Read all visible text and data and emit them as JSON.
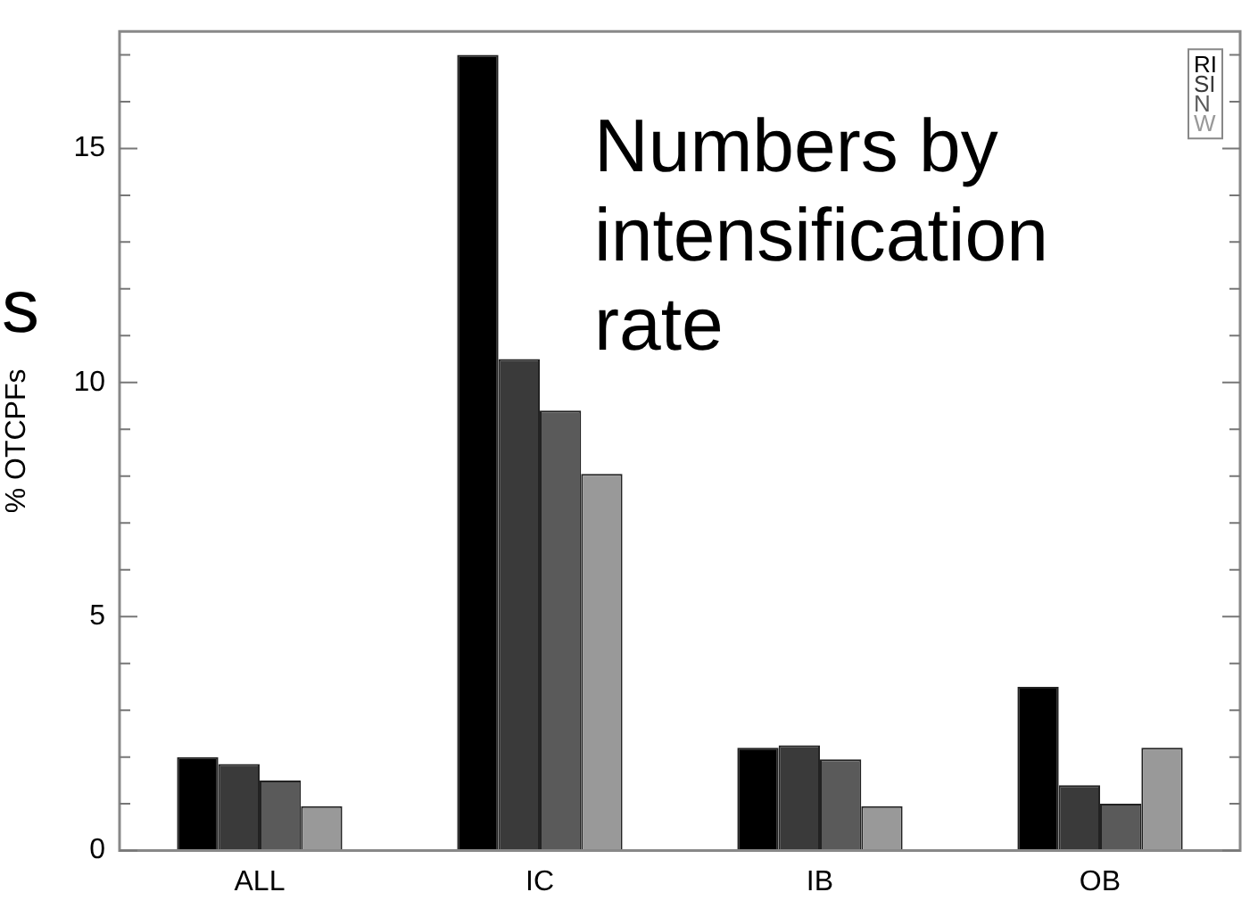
{
  "chart_data": {
    "type": "bar",
    "ylabel": "% OTCPFs",
    "categories": [
      "ALL",
      "IC",
      "IB",
      "OB"
    ],
    "series": [
      {
        "name": "RI",
        "color": "#000000",
        "values": [
          2.0,
          17.0,
          2.2,
          3.5
        ]
      },
      {
        "name": "SI",
        "color": "#3a3a3a",
        "values": [
          1.85,
          10.5,
          2.25,
          1.4
        ]
      },
      {
        "name": "N",
        "color": "#5a5a5a",
        "values": [
          1.5,
          9.4,
          1.95,
          1.0
        ]
      },
      {
        "name": "W",
        "color": "#999999",
        "values": [
          0.95,
          8.05,
          0.95,
          2.2
        ]
      }
    ],
    "ylim": [
      0,
      17.5
    ],
    "yticks": [
      0,
      {
        "value": 1,
        "label": null
      },
      {
        "value": 2,
        "label": null
      },
      {
        "value": 3,
        "label": null
      },
      {
        "value": 4,
        "label": null
      },
      5,
      {
        "value": 6,
        "label": null
      },
      {
        "value": 7,
        "label": null
      },
      {
        "value": 8,
        "label": null
      },
      {
        "value": 9,
        "label": null
      },
      10,
      {
        "value": 11,
        "label": null
      },
      {
        "value": 12,
        "label": null
      },
      {
        "value": 13,
        "label": null
      },
      {
        "value": 14,
        "label": null
      },
      15,
      {
        "value": 16,
        "label": null
      },
      {
        "value": 17,
        "label": null
      }
    ],
    "grid": false,
    "legend": "top right",
    "annotations": [
      "Numbers by intensification rate",
      "s"
    ]
  }
}
